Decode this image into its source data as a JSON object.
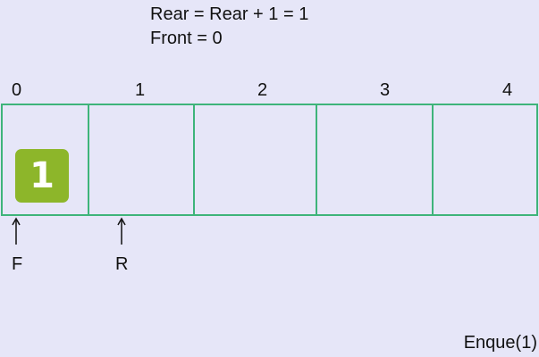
{
  "equations": {
    "rear": "Rear = Rear + 1 = 1",
    "front": "Front = 0"
  },
  "indices": [
    "0",
    "1",
    "2",
    "3",
    "4"
  ],
  "queue": {
    "slots": [
      "1",
      "",
      "",
      "",
      ""
    ],
    "color_border": "#3eb47a",
    "color_tile": "#8db62a"
  },
  "pointers": {
    "front_label": "F",
    "rear_label": "R"
  },
  "operation": "Enque(1)"
}
